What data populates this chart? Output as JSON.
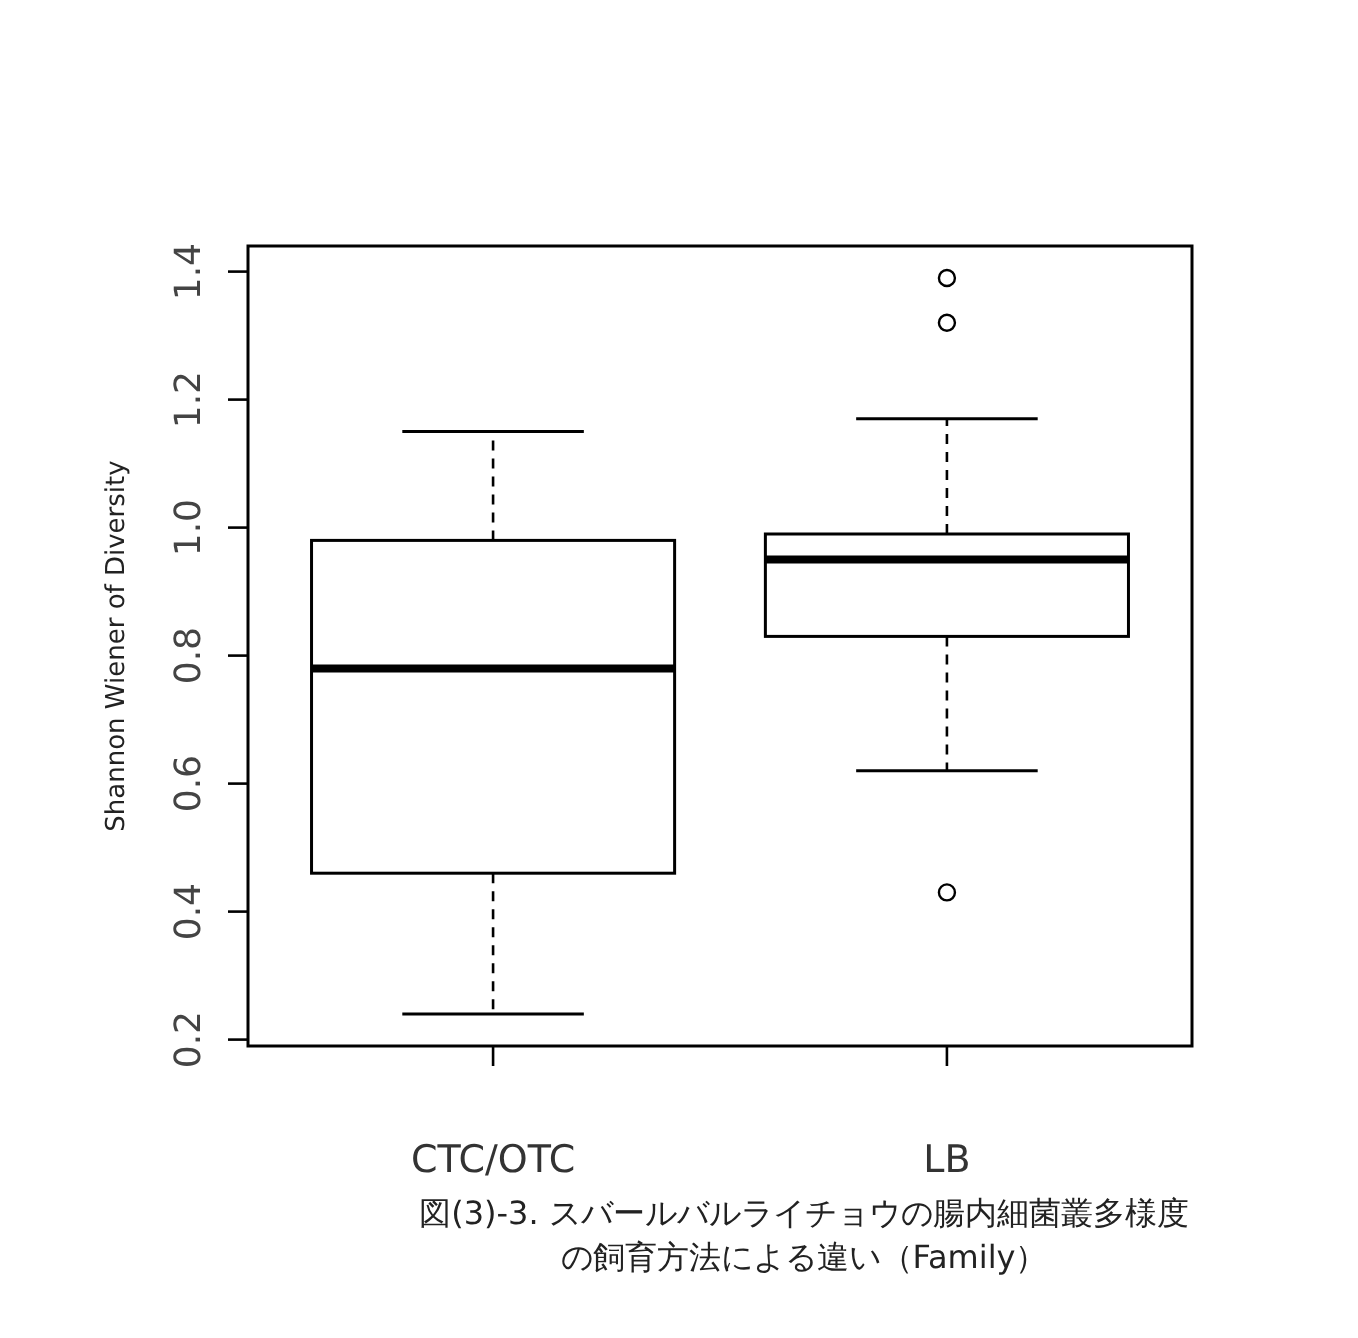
{
  "chart_data": {
    "type": "box",
    "ylabel": "Shannon Wiener of Diversity",
    "categories": [
      "CTC/OTC",
      "LB"
    ],
    "boxes": [
      {
        "low": 0.24,
        "q1": 0.46,
        "median": 0.78,
        "q3": 0.98,
        "high": 1.15
      },
      {
        "low": 0.62,
        "q1": 0.83,
        "median": 0.95,
        "q3": 0.99,
        "high": 1.17,
        "outliers": [
          1.39,
          1.32,
          0.43
        ]
      }
    ],
    "ylim": [
      0.19,
      1.44
    ],
    "yticks": [
      {
        "value": 0.2,
        "label": "0.2"
      },
      {
        "value": 0.4,
        "label": "0.4"
      },
      {
        "value": 0.6,
        "label": "0.6"
      },
      {
        "value": 0.8,
        "label": "0.8"
      },
      {
        "value": 1.0,
        "label": "1.0"
      },
      {
        "value": 1.2,
        "label": "1.2"
      },
      {
        "value": 1.4,
        "label": "1.4"
      }
    ],
    "grid": false,
    "annotations": [
      "図(3)-3. スバールバルライチョウの腸内細菌叢多様度",
      "の飼育方法による違い（Family）"
    ]
  }
}
